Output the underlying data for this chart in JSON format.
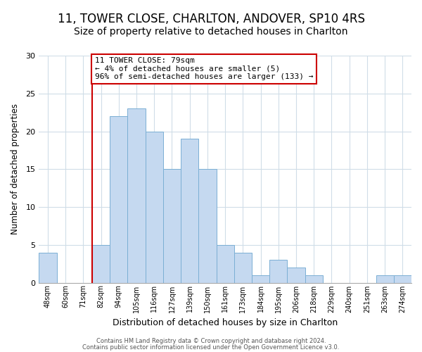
{
  "title": "11, TOWER CLOSE, CHARLTON, ANDOVER, SP10 4RS",
  "subtitle": "Size of property relative to detached houses in Charlton",
  "xlabel": "Distribution of detached houses by size in Charlton",
  "ylabel": "Number of detached properties",
  "bar_labels": [
    "48sqm",
    "60sqm",
    "71sqm",
    "82sqm",
    "94sqm",
    "105sqm",
    "116sqm",
    "127sqm",
    "139sqm",
    "150sqm",
    "161sqm",
    "173sqm",
    "184sqm",
    "195sqm",
    "206sqm",
    "218sqm",
    "229sqm",
    "240sqm",
    "251sqm",
    "263sqm",
    "274sqm"
  ],
  "bar_values": [
    4,
    0,
    0,
    5,
    22,
    23,
    20,
    15,
    19,
    15,
    5,
    4,
    1,
    3,
    2,
    1,
    0,
    0,
    0,
    1,
    1
  ],
  "bar_color": "#c5d9f0",
  "bar_edge_color": "#7bafd4",
  "red_line_index": 3,
  "annotation_line1": "11 TOWER CLOSE: 79sqm",
  "annotation_line2": "← 4% of detached houses are smaller (5)",
  "annotation_line3": "96% of semi-detached houses are larger (133) →",
  "annotation_box_edge": "#cc0000",
  "annotation_box_bg": "#ffffff",
  "ylim": [
    0,
    30
  ],
  "yticks": [
    0,
    5,
    10,
    15,
    20,
    25,
    30
  ],
  "footnote1": "Contains HM Land Registry data © Crown copyright and database right 2024.",
  "footnote2": "Contains public sector information licensed under the Open Government Licence v3.0.",
  "bg_color": "#ffffff",
  "grid_color": "#d0dde8",
  "title_fontsize": 12,
  "subtitle_fontsize": 10
}
